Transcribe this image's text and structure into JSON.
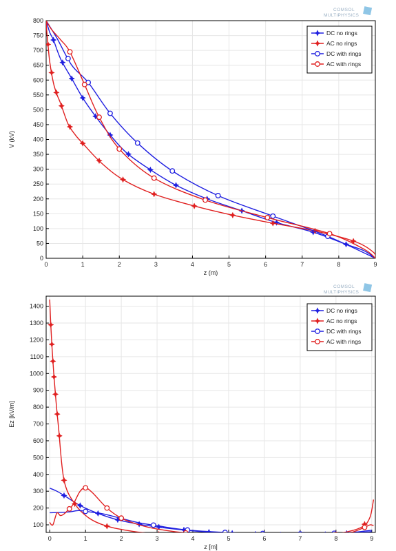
{
  "chart_data": [
    {
      "type": "line",
      "logo": {
        "line1": "COMSOL",
        "line2": "MULTIPHYSICS"
      },
      "xlabel": "z (m)",
      "ylabel": "V (kV)",
      "xlim": [
        0,
        9
      ],
      "ylim": [
        0,
        800
      ],
      "xticks": [
        0,
        1,
        2,
        3,
        4,
        5,
        6,
        7,
        8,
        9
      ],
      "yticks": [
        0,
        50,
        100,
        150,
        200,
        250,
        300,
        350,
        400,
        450,
        500,
        550,
        600,
        650,
        700,
        750,
        800
      ],
      "grid": true,
      "legend_position": "top-right",
      "colors": {
        "dc": "#1f1fe0",
        "ac": "#e01f1f"
      },
      "series": [
        {
          "name": "DC  no rings",
          "color": "#1f1fe0",
          "marker": "star",
          "x": [
            0,
            0.1,
            0.2,
            0.4,
            0.7,
            1.0,
            1.35,
            1.75,
            2.2,
            2.85,
            3.55,
            4.4,
            5.35,
            6.25,
            7.3,
            8.2,
            8.7,
            9.0
          ],
          "y": [
            800,
            760,
            735,
            670,
            605,
            540,
            478,
            415,
            355,
            298,
            246,
            200,
            160,
            122,
            88,
            47,
            25,
            0
          ],
          "mx": [
            0.2,
            0.45,
            0.7,
            1.0,
            1.35,
            1.75,
            2.25,
            2.85,
            3.55,
            4.4,
            5.35,
            6.3,
            7.3,
            8.2
          ]
        },
        {
          "name": "AC  no rings",
          "color": "#e01f1f",
          "marker": "star",
          "x": [
            0,
            0.02,
            0.05,
            0.1,
            0.2,
            0.3,
            0.4,
            0.6,
            0.8,
            1.0,
            1.5,
            2.1,
            2.95,
            4.05,
            5.1,
            6.2,
            7.35,
            8.45,
            8.95,
            9.0
          ],
          "y": [
            800,
            760,
            720,
            660,
            590,
            550,
            520,
            452,
            415,
            387,
            322,
            265,
            216,
            176,
            145,
            118,
            92,
            56,
            20,
            0
          ],
          "mx": [
            0.05,
            0.15,
            0.28,
            0.42,
            0.65,
            1.0,
            1.45,
            2.1,
            2.95,
            4.05,
            5.1,
            6.2,
            7.35,
            8.4
          ]
        },
        {
          "name": "DC  with rings",
          "color": "#1f1fe0",
          "marker": "circle",
          "x": [
            0,
            0.3,
            0.7,
            1.15,
            1.75,
            2.5,
            3.45,
            4.7,
            6.2,
            7.7,
            9.0
          ],
          "y": [
            800,
            740,
            650,
            592,
            488,
            388,
            294,
            211,
            142,
            74,
            0
          ],
          "mx": [
            0.6,
            1.15,
            1.75,
            2.5,
            3.45,
            4.7,
            6.2,
            7.7
          ]
        },
        {
          "name": "AC  with rings",
          "color": "#e01f1f",
          "marker": "circle",
          "x": [
            0,
            0.15,
            0.4,
            0.65,
            1.05,
            1.45,
            2.0,
            2.95,
            4.35,
            6.05,
            7.75,
            8.7,
            9.0
          ],
          "y": [
            800,
            770,
            735,
            695,
            585,
            475,
            368,
            270,
            196,
            137,
            83,
            30,
            0
          ],
          "mx": [
            0.65,
            1.05,
            1.45,
            2.0,
            2.95,
            4.35,
            6.05,
            7.75
          ]
        }
      ]
    },
    {
      "type": "line",
      "logo": {
        "line1": "COMSOL",
        "line2": "MULTIPHYSICS"
      },
      "xlabel": "z  [m]",
      "ylabel": "Ez   [kV/m]",
      "xlim": [
        -0.1,
        9.1
      ],
      "ylim": [
        55,
        1460
      ],
      "xticks": [
        0,
        1,
        2,
        3,
        4,
        5,
        6,
        7,
        8,
        9
      ],
      "yticks": [
        100,
        200,
        300,
        400,
        500,
        600,
        700,
        800,
        900,
        1000,
        1100,
        1200,
        1300,
        1400
      ],
      "grid": true,
      "legend_position": "top-right",
      "colors": {
        "dc": "#1f1fe0",
        "ac": "#e01f1f"
      },
      "series": [
        {
          "name": "DC no rings",
          "color": "#1f1fe0",
          "marker": "star",
          "x": [
            0,
            0.2,
            0.45,
            0.85,
            1.35,
            1.9,
            2.6,
            3.5,
            4.5,
            5.6,
            6.7,
            7.8,
            8.5,
            9.0
          ],
          "y": [
            318,
            300,
            268,
            215,
            168,
            130,
            100,
            75,
            56,
            46,
            40,
            44,
            52,
            60
          ],
          "mx": [
            0.4,
            0.85,
            1.35,
            1.9,
            2.5,
            3.05,
            3.75,
            4.45,
            5.1,
            5.75,
            6.45,
            7.1,
            7.7,
            8.3
          ]
        },
        {
          "name": "AC no rings",
          "color": "#e01f1f",
          "marker": "star",
          "x": [
            0,
            0.03,
            0.07,
            0.12,
            0.18,
            0.25,
            0.4,
            0.7,
            1.1,
            1.6,
            2.3,
            3.05,
            3.8,
            4.6,
            5.4,
            6.15,
            6.9,
            7.6,
            8.3,
            8.75,
            8.95,
            9.05
          ],
          "y": [
            1440,
            1290,
            1135,
            980,
            825,
            670,
            365,
            225,
            140,
            92,
            62,
            45,
            36,
            31,
            28,
            27,
            30,
            38,
            58,
            90,
            145,
            250
          ],
          "mx": [
            0.03,
            0.06,
            0.09,
            0.12,
            0.16,
            0.21,
            0.27,
            0.4,
            0.7,
            1.6,
            3.05,
            4.6,
            6.1,
            7.6,
            8.8
          ]
        },
        {
          "name": "DC with rings",
          "color": "#1f1fe0",
          "marker": "circle",
          "x": [
            0,
            0.5,
            0.8,
            1.0,
            1.5,
            2.0,
            2.5,
            3.0,
            3.8,
            4.9,
            6.0,
            7.0,
            8.0,
            8.6,
            9.0
          ],
          "y": [
            172,
            176,
            185,
            180,
            165,
            138,
            112,
            95,
            70,
            55,
            48,
            46,
            50,
            58,
            68
          ],
          "mx": [
            1.0,
            2.0,
            2.9,
            3.85,
            4.9,
            5.95,
            7.0,
            7.95
          ]
        },
        {
          "name": "AC with rings",
          "color": "#e01f1f",
          "marker": "circle",
          "x": [
            0,
            0.05,
            0.1,
            0.2,
            0.3,
            0.4,
            0.5,
            0.6,
            0.7,
            0.85,
            1.0,
            1.2,
            1.6,
            2.0,
            2.5,
            3.0,
            3.8,
            4.6,
            5.3,
            6.0,
            6.8,
            7.6,
            8.3,
            8.75,
            8.95,
            9.05
          ],
          "y": [
            115,
            100,
            105,
            170,
            155,
            165,
            185,
            205,
            240,
            300,
            320,
            290,
            200,
            140,
            100,
            75,
            52,
            42,
            38,
            34,
            32,
            36,
            48,
            80,
            100,
            95
          ],
          "mx": [
            0.55,
            1.0,
            1.6,
            2.0,
            3.8,
            5.25,
            6.75,
            8.0,
            8.8
          ]
        }
      ]
    }
  ]
}
